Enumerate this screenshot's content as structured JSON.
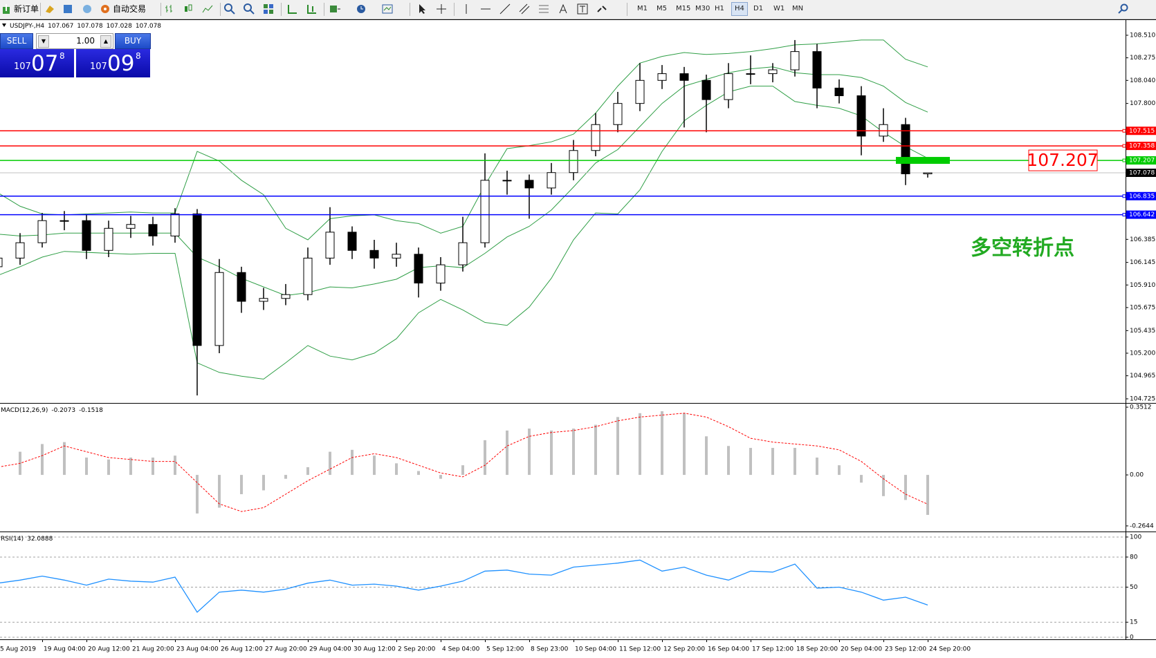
{
  "toolbar": {
    "new_order": "新订单",
    "auto_trading": "自动交易",
    "timeframes": [
      "M1",
      "M5",
      "M15",
      "M30",
      "H1",
      "H4",
      "D1",
      "W1",
      "MN"
    ],
    "active_timeframe": "H4"
  },
  "trade_panel": {
    "sell": "SELL",
    "buy": "BUY",
    "lot": "1.00",
    "bid": [
      "107",
      "07",
      "8"
    ],
    "ask": [
      "107",
      "09",
      "8"
    ]
  },
  "chart_data": [
    {
      "type": "candlestick",
      "title": "USDJPY-,H4",
      "annotation": "多空转折点",
      "categories": [
        "5 Aug 2019",
        null,
        "19 Aug 04:00",
        null,
        "20 Aug 12:00",
        null,
        "21 Aug 20:00",
        null,
        "23 Aug 04:00",
        null,
        "26 Aug 12:00",
        null,
        "27 Aug 20:00",
        null,
        "29 Aug 04:00",
        null,
        "30 Aug 12:00",
        null,
        "2 Sep 20:00",
        null,
        "4 Sep 04:00",
        null,
        "5 Sep 12:00",
        null,
        "8 Sep 23:00",
        null,
        "10 Sep 04:00",
        null,
        "11 Sep 12:00",
        null,
        "12 Sep 20:00",
        null,
        "16 Sep 04:00",
        null,
        "17 Sep 12:00",
        null,
        "18 Sep 20:00",
        null,
        "20 Sep 04:00",
        null,
        "23 Sep 12:00",
        null,
        "24 Sep 20:00"
      ],
      "open": [
        106.1,
        106.19,
        106.35,
        106.58,
        106.58,
        106.27,
        106.5,
        106.54,
        106.42,
        106.65,
        105.28,
        106.04,
        105.74,
        105.77,
        105.81,
        106.19,
        106.46,
        106.27,
        106.19,
        106.23,
        105.93,
        106.12,
        106.35,
        107.0,
        107.0,
        106.92,
        107.08,
        107.31,
        107.58,
        107.8,
        108.04,
        108.11,
        108.04,
        107.84,
        108.11,
        108.11,
        108.15,
        108.34,
        107.96,
        107.88,
        107.46,
        107.58,
        107.067
      ],
      "high": [
        106.3,
        106.45,
        106.66,
        106.68,
        106.64,
        106.58,
        106.63,
        106.62,
        106.71,
        106.7,
        106.18,
        106.1,
        105.88,
        105.92,
        106.3,
        106.72,
        106.52,
        106.38,
        106.35,
        106.3,
        106.2,
        106.62,
        107.28,
        107.1,
        107.06,
        107.18,
        107.42,
        107.7,
        107.92,
        108.22,
        108.2,
        108.18,
        108.1,
        108.22,
        108.3,
        108.22,
        108.46,
        108.42,
        108.05,
        107.98,
        107.75,
        107.65,
        107.078
      ],
      "low": [
        106.0,
        106.12,
        106.3,
        106.48,
        106.18,
        106.2,
        106.4,
        106.32,
        106.35,
        104.76,
        105.2,
        105.62,
        105.65,
        105.7,
        105.75,
        106.12,
        106.18,
        106.08,
        106.1,
        105.78,
        105.85,
        106.05,
        106.3,
        106.85,
        106.6,
        106.85,
        107.0,
        107.25,
        107.5,
        107.72,
        107.95,
        107.55,
        107.5,
        107.75,
        108.0,
        108.02,
        108.08,
        107.75,
        107.8,
        107.26,
        107.4,
        106.95,
        107.028
      ],
      "close": [
        106.19,
        106.35,
        106.58,
        106.58,
        106.27,
        106.5,
        106.54,
        106.42,
        106.65,
        105.28,
        106.04,
        105.74,
        105.77,
        105.81,
        106.19,
        106.46,
        106.27,
        106.19,
        106.23,
        105.93,
        106.12,
        106.35,
        107.0,
        107.0,
        106.92,
        107.08,
        107.31,
        107.58,
        107.8,
        108.04,
        108.11,
        108.04,
        107.84,
        108.11,
        108.11,
        108.15,
        108.34,
        107.96,
        107.88,
        107.46,
        107.58,
        107.067,
        107.078
      ],
      "up_color": "#ffffff",
      "down_color": "#000000",
      "bands": {
        "color": "#2e9e45",
        "upper": [
          106.87,
          106.73,
          106.65,
          106.64,
          106.65,
          106.66,
          106.67,
          106.66,
          106.66,
          107.3,
          107.2,
          107.0,
          106.85,
          106.5,
          106.38,
          106.6,
          106.63,
          106.64,
          106.58,
          106.55,
          106.45,
          106.52,
          106.95,
          107.33,
          107.36,
          107.4,
          107.48,
          107.7,
          107.98,
          108.22,
          108.29,
          108.33,
          108.31,
          108.32,
          108.34,
          108.37,
          108.41,
          108.42,
          108.44,
          108.46,
          108.46,
          108.26,
          108.18
        ],
        "middle": [
          106.44,
          106.42,
          106.43,
          106.45,
          106.45,
          106.45,
          106.45,
          106.45,
          106.45,
          106.2,
          106.1,
          105.98,
          105.89,
          105.8,
          105.83,
          105.89,
          105.88,
          105.92,
          105.97,
          106.09,
          106.11,
          106.09,
          106.24,
          106.41,
          106.52,
          106.69,
          106.93,
          107.18,
          107.32,
          107.56,
          107.8,
          107.98,
          108.05,
          108.12,
          108.16,
          108.18,
          108.12,
          108.1,
          108.1,
          108.07,
          107.98,
          107.81,
          107.71
        ],
        "lower": [
          106.01,
          106.1,
          106.2,
          106.26,
          106.25,
          106.24,
          106.23,
          106.24,
          106.24,
          105.1,
          105.0,
          104.96,
          104.93,
          105.1,
          105.28,
          105.17,
          105.13,
          105.2,
          105.35,
          105.62,
          105.76,
          105.65,
          105.52,
          105.49,
          105.68,
          105.98,
          106.38,
          106.66,
          106.65,
          106.9,
          107.3,
          107.62,
          107.78,
          107.92,
          107.98,
          107.98,
          107.82,
          107.78,
          107.75,
          107.67,
          107.5,
          107.35,
          107.23
        ]
      },
      "levels": [
        {
          "value": 107.515,
          "color": "#ff0000"
        },
        {
          "value": 107.358,
          "color": "#ff0000"
        },
        {
          "value": 107.207,
          "color": "#00cc00",
          "highlight": true
        },
        {
          "value": 106.835,
          "color": "#0000ff"
        },
        {
          "value": 106.642,
          "color": "#0000ff"
        }
      ],
      "ylim": [
        104.689,
        108.661
      ],
      "yticks": [
        104.725,
        104.965,
        {
          "value": 105.2,
          "label": "105.200"
        },
        105.435,
        105.675,
        {
          "value": 105.91,
          "label": "105.910"
        },
        106.145,
        106.385,
        {
          "value": 107.8,
          "label": "107.800"
        },
        {
          "value": 108.04,
          "label": "108.040"
        },
        108.275,
        {
          "value": 108.51,
          "label": "108.510"
        }
      ]
    },
    {
      "type": "bar",
      "title": "MACD(12,26,9)",
      "series": [
        {
          "color": "#c0c0c0",
          "values": [
            0.06,
            0.12,
            0.16,
            0.17,
            0.09,
            0.08,
            0.09,
            0.09,
            0.1,
            -0.2,
            -0.17,
            -0.1,
            -0.08,
            -0.02,
            0.04,
            0.12,
            0.13,
            0.1,
            0.06,
            0.02,
            -0.02,
            0.05,
            0.18,
            0.23,
            0.24,
            0.23,
            0.24,
            0.26,
            0.3,
            0.32,
            0.33,
            0.32,
            0.2,
            0.15,
            0.14,
            0.14,
            0.14,
            0.09,
            0.05,
            -0.04,
            -0.11,
            -0.13,
            -0.2073
          ]
        },
        {
          "type": "line",
          "line_style": "dashed",
          "color": "#ff0000",
          "values": [
            0.04,
            0.06,
            0.1,
            0.15,
            0.12,
            0.09,
            0.08,
            0.07,
            0.07,
            -0.04,
            -0.15,
            -0.19,
            -0.17,
            -0.1,
            -0.03,
            0.03,
            0.09,
            0.11,
            0.09,
            0.05,
            0.01,
            -0.01,
            0.05,
            0.15,
            0.2,
            0.22,
            0.23,
            0.25,
            0.28,
            0.3,
            0.31,
            0.32,
            0.3,
            0.25,
            0.19,
            0.17,
            0.16,
            0.15,
            0.13,
            0.07,
            -0.02,
            -0.1,
            -0.1518
          ]
        }
      ],
      "ylim": [
        -0.2899,
        0.3658
      ],
      "yticks": [
        -0.2644,
        {
          "value": 0,
          "label": "0.00"
        },
        0.3512
      ]
    },
    {
      "type": "line",
      "title": "RSI(14)",
      "color": "#1e90ff",
      "values": [
        54,
        57,
        61,
        57,
        52,
        58,
        56,
        55,
        60,
        25,
        45,
        47,
        45,
        48,
        54,
        57,
        52,
        53,
        51,
        47,
        51,
        56,
        66,
        67,
        63,
        62,
        70,
        72,
        74,
        77,
        66,
        70,
        62,
        57,
        66,
        65,
        73,
        49,
        50,
        45,
        37,
        40,
        32.0888
      ],
      "ylim": [
        -1.4,
        104.1
      ],
      "yticks": [
        0,
        15,
        50,
        80,
        100
      ],
      "grid": true
    }
  ]
}
